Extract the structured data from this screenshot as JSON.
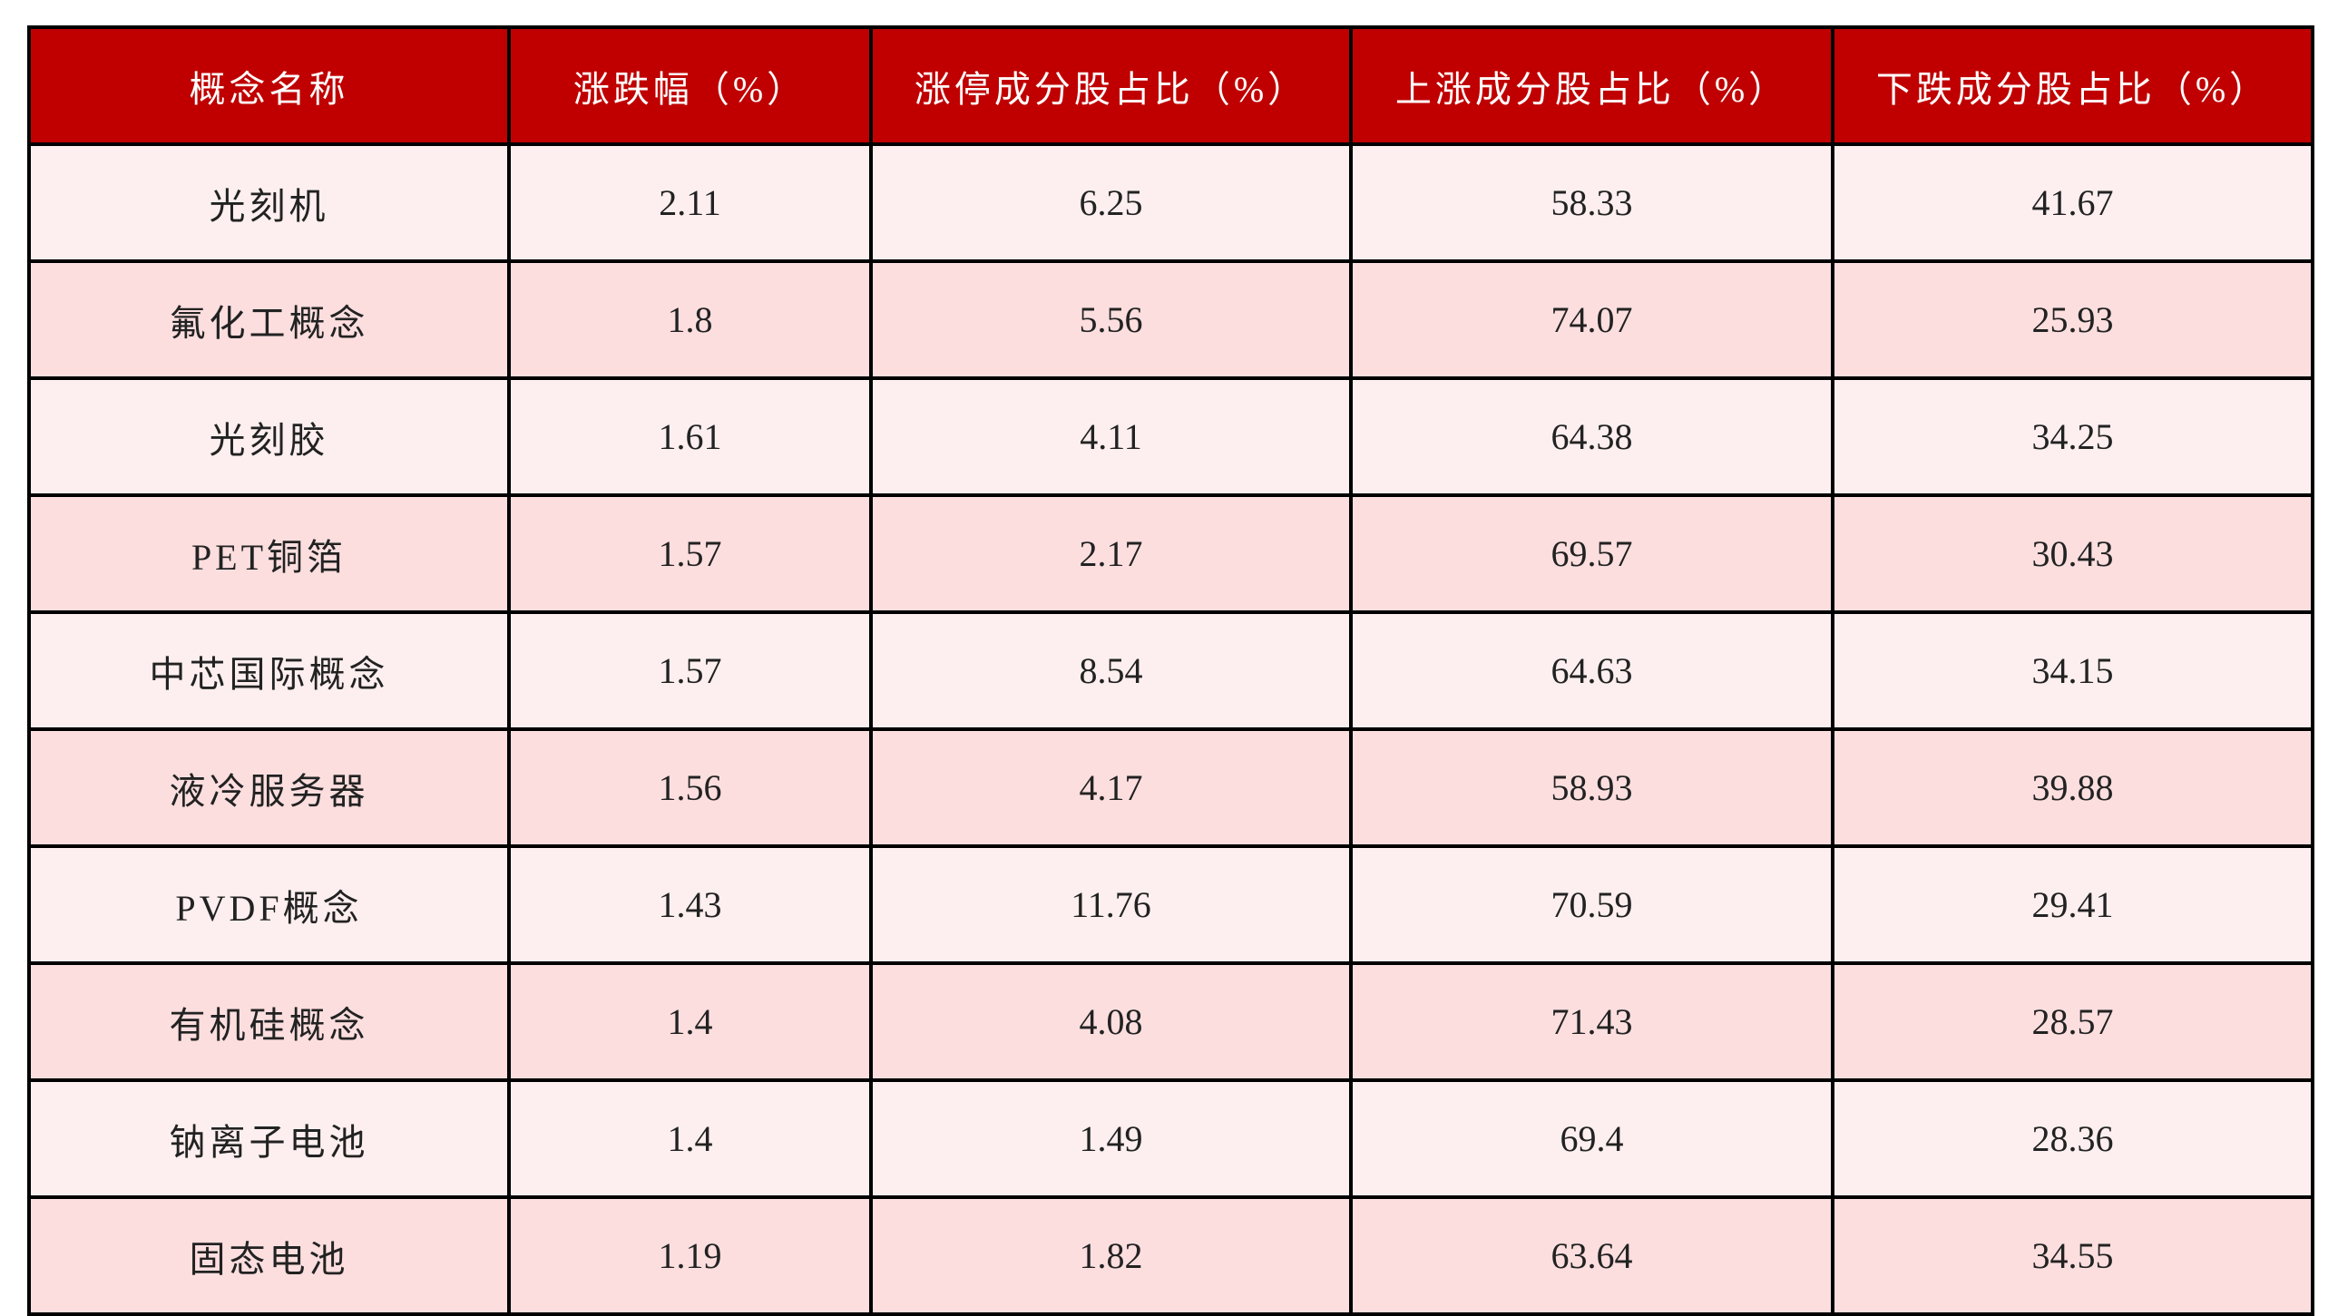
{
  "colors": {
    "header_bg": "#C00000",
    "row_odd": "#FDEFEF",
    "row_even": "#FCDEDF"
  },
  "table": {
    "headers": [
      "概念名称",
      "涨跌幅（%）",
      "涨停成分股占比（%）",
      "上涨成分股占比（%）",
      "下跌成分股占比（%）"
    ],
    "rows": [
      [
        "光刻机",
        "2.11",
        "6.25",
        "58.33",
        "41.67"
      ],
      [
        "氟化工概念",
        "1.8",
        "5.56",
        "74.07",
        "25.93"
      ],
      [
        "光刻胶",
        "1.61",
        "4.11",
        "64.38",
        "34.25"
      ],
      [
        "PET铜箔",
        "1.57",
        "2.17",
        "69.57",
        "30.43"
      ],
      [
        "中芯国际概念",
        "1.57",
        "8.54",
        "64.63",
        "34.15"
      ],
      [
        "液冷服务器",
        "1.56",
        "4.17",
        "58.93",
        "39.88"
      ],
      [
        "PVDF概念",
        "1.43",
        "11.76",
        "70.59",
        "29.41"
      ],
      [
        "有机硅概念",
        "1.4",
        "4.08",
        "71.43",
        "28.57"
      ],
      [
        "钠离子电池",
        "1.4",
        "1.49",
        "69.4",
        "28.36"
      ],
      [
        "固态电池",
        "1.19",
        "1.82",
        "63.64",
        "34.55"
      ]
    ]
  }
}
